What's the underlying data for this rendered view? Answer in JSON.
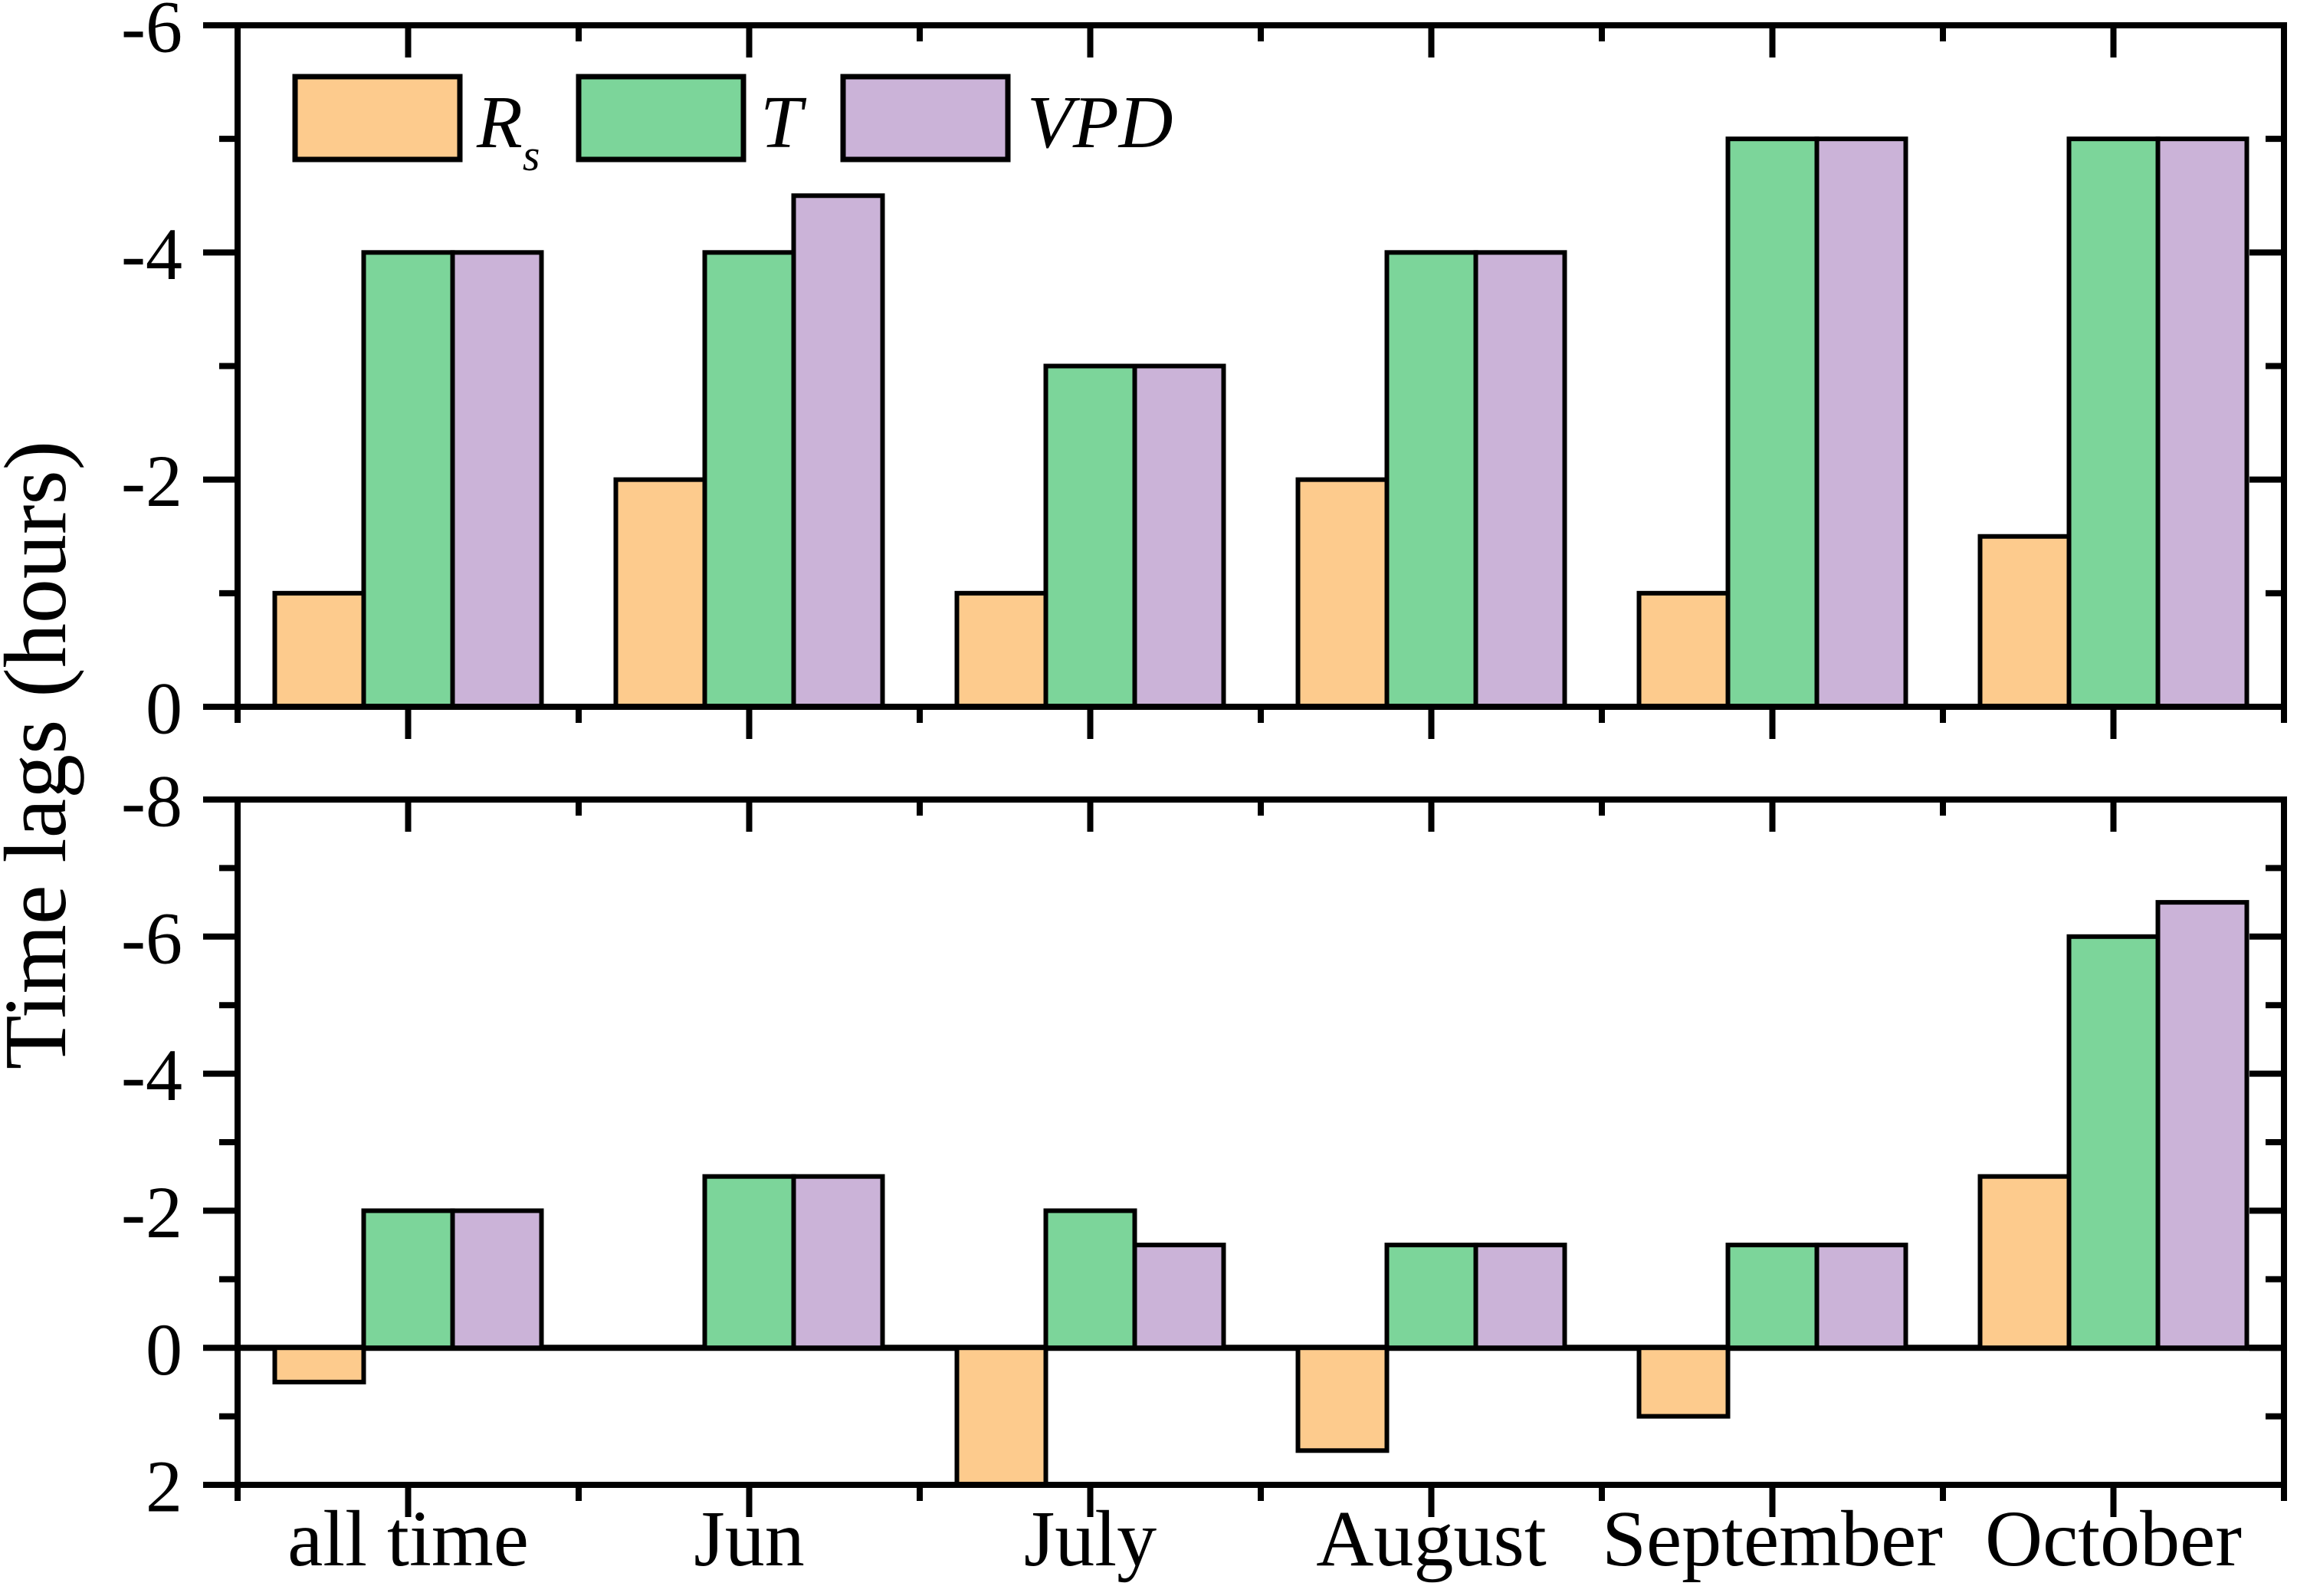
{
  "figure": {
    "ylabel": "Time lags (hours)",
    "background": "#ffffff",
    "axis_color": "#000000",
    "legend": [
      {
        "label": "R",
        "subscript": "s",
        "color": "#FDCB8D"
      },
      {
        "label": "T",
        "subscript": "",
        "color": "#7CD59A"
      },
      {
        "label": "VPD",
        "subscript": "",
        "color": "#CBB3D8"
      }
    ]
  },
  "chart_data": [
    {
      "type": "bar",
      "panel": "top",
      "title": "",
      "xlabel": "",
      "ylabel": "Time lags (hours)",
      "categories": [
        "all time",
        "Jun",
        "July",
        "August",
        "September",
        "October"
      ],
      "series": [
        {
          "name": "Rs",
          "color": "#FDCB8D",
          "values": [
            -1,
            -2,
            -1,
            -2,
            -1,
            -1.5
          ]
        },
        {
          "name": "T",
          "color": "#7CD59A",
          "values": [
            -4,
            -4,
            -3,
            -4,
            -5,
            -5
          ]
        },
        {
          "name": "VPD",
          "color": "#CBB3D8",
          "values": [
            -4,
            -4.5,
            -3,
            -4,
            -5,
            -5
          ]
        }
      ],
      "ylim": [
        0,
        -6
      ],
      "yticks_major": [
        0,
        -2,
        -4,
        -6
      ],
      "yticks_minor": [
        -1,
        -3,
        -5
      ],
      "grid": false,
      "legend_position": "top-left",
      "zero_line": false,
      "show_category_labels": false
    },
    {
      "type": "bar",
      "panel": "bottom",
      "title": "",
      "xlabel": "",
      "ylabel": "Time lags (hours)",
      "categories": [
        "all time",
        "Jun",
        "July",
        "August",
        "September",
        "October"
      ],
      "series": [
        {
          "name": "Rs",
          "color": "#FDCB8D",
          "values": [
            0.5,
            0,
            2,
            1.5,
            1,
            -2.5
          ]
        },
        {
          "name": "T",
          "color": "#7CD59A",
          "values": [
            -2,
            -2.5,
            -2,
            -1.5,
            -1.5,
            -6
          ]
        },
        {
          "name": "VPD",
          "color": "#CBB3D8",
          "values": [
            -2,
            -2.5,
            -1.5,
            -1.5,
            -1.5,
            -6.5
          ]
        }
      ],
      "ylim": [
        2,
        -8
      ],
      "yticks_major": [
        2,
        0,
        -2,
        -4,
        -6,
        -8
      ],
      "yticks_minor": [
        1,
        -1,
        -3,
        -5,
        -7
      ],
      "grid": false,
      "legend_position": "none",
      "zero_line": true,
      "show_category_labels": true
    }
  ]
}
